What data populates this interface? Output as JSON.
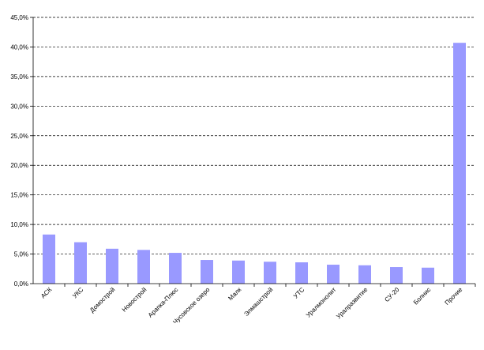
{
  "chart_data": {
    "type": "bar",
    "title": "",
    "xlabel": "",
    "ylabel": "",
    "categories": [
      "АСК",
      "УКС",
      "Домострой",
      "Новострой",
      "Арапка-Плюс",
      "Чусовское озеро",
      "Малк",
      "Элмашстрой",
      "УТС",
      "Уралмонолит",
      "Уралразвитие",
      "СУ-20",
      "Болнис",
      "Прочие"
    ],
    "values": [
      8.3,
      7.0,
      5.9,
      5.7,
      5.2,
      4.0,
      3.9,
      3.7,
      3.6,
      3.2,
      3.1,
      2.8,
      2.7,
      40.7
    ],
    "ylim": [
      0,
      45
    ],
    "yticks": [
      "0,0%",
      "5,0%",
      "10,0%",
      "15,0%",
      "20,0%",
      "25,0%",
      "30,0%",
      "35,0%",
      "40,0%",
      "45,0%"
    ],
    "grid": true,
    "bar_color": "#9999ff",
    "grid_color": "#000000"
  }
}
